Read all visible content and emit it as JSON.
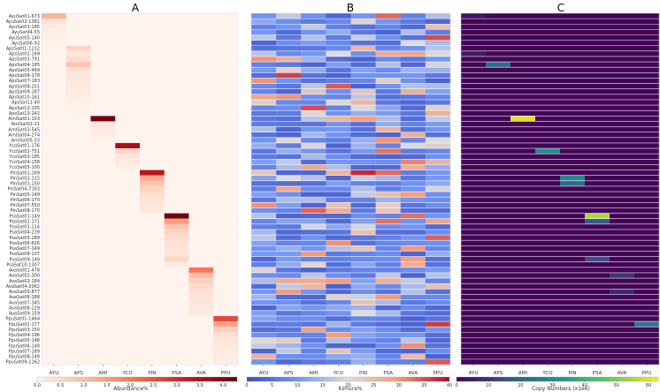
{
  "chart_data": [
    {
      "type": "heatmap",
      "panel": "A",
      "title": "A",
      "xlabel": "",
      "ylabel": "",
      "columns": [
        "AYU",
        "APS",
        "AMI",
        "YCO",
        "PIN",
        "PSA",
        "AVA",
        "PPU"
      ],
      "rows": [
        "AyuSat01-673",
        "AyuSat02-1381",
        "AyuSat03-185",
        "AyuSat04-55",
        "AyuSat05-140",
        "AyuSat06-92",
        "ApsSat01-1212",
        "ApsSat02-169",
        "ApsSat03-791",
        "ApsSat04-185",
        "ApsSat05-469",
        "ApsSat06-178",
        "ApsSat07-183",
        "ApsSat08-201",
        "ApsSat09-187",
        "ApsSat10-161",
        "ApsSat11-40",
        "ApsSat12-105",
        "ApsSat13-242",
        "AmiSat01-103",
        "AmiSat02-21",
        "AmiSat03-545",
        "AmiSat04-274",
        "AmiSat05-53",
        "YcoSat01-176",
        "YcoSat02-751",
        "YcoSat03-185",
        "YcoSat04-158",
        "YcoSat05-100",
        "PinSat01-169",
        "PinSat02-115",
        "PinSat03-150",
        "PinSat04-7163",
        "PinSat05-149",
        "PinSat06-170",
        "PinSat07-550",
        "PinSat08-170",
        "PsaSat01-149",
        "PsaSat02-171",
        "PsaSat03-114",
        "PsaSat04-239",
        "PsaSat05-289",
        "PsaSat06-626",
        "PsaSat07-149",
        "PsaSat08-107",
        "PsaSat09-149",
        "PsaSat10-1307",
        "AvaSat01-478",
        "AvaSat02-300",
        "AvaSat03-184",
        "AvaSat04-2062",
        "AvaSat05-877",
        "AvaSat06-188",
        "AvaSat07-345",
        "AvaSat08-129",
        "AvaSat09-159",
        "PpuSat01-1464",
        "PpuSat02-177",
        "PpuSat03-150",
        "PpuSat04-196",
        "PpuSat05-148",
        "PpuSat06-149",
        "PpuSat07-189",
        "PpuSat08-149",
        "PpuSat09-1162"
      ],
      "row_groups": [
        {
          "species_col": 0,
          "start": 0,
          "count": 6
        },
        {
          "species_col": 1,
          "start": 6,
          "count": 13
        },
        {
          "species_col": 2,
          "start": 19,
          "count": 5
        },
        {
          "species_col": 3,
          "start": 24,
          "count": 5
        },
        {
          "species_col": 4,
          "start": 29,
          "count": 8
        },
        {
          "species_col": 5,
          "start": 37,
          "count": 10
        },
        {
          "species_col": 6,
          "start": 47,
          "count": 9
        },
        {
          "species_col": 7,
          "start": 56,
          "count": 9
        }
      ],
      "group_values": [
        [
          1.2,
          0.35,
          0.2,
          0.15,
          0.1,
          0.1
        ],
        [
          0.6,
          0.3,
          0.5,
          0.9,
          0.35,
          0.3,
          0.25,
          0.2,
          0.2,
          0.15,
          0.12,
          0.1,
          0.1
        ],
        [
          4.2,
          0.3,
          0.2,
          0.15,
          0.1
        ],
        [
          3.6,
          0.5,
          0.3,
          0.2,
          0.15
        ],
        [
          3.4,
          1.3,
          0.9,
          0.6,
          0.45,
          0.35,
          0.3,
          0.25
        ],
        [
          4.2,
          1.5,
          0.9,
          0.6,
          0.5,
          0.4,
          0.35,
          0.3,
          0.6,
          0.2
        ],
        [
          2.0,
          1.0,
          0.7,
          0.5,
          0.4,
          0.35,
          0.3,
          0.25,
          0.2
        ],
        [
          2.6,
          1.4,
          0.7,
          0.4,
          0.3,
          0.25,
          0.2,
          0.2,
          0.15
        ]
      ],
      "background_value": 0.03,
      "colorbar": {
        "label": "Abundance%",
        "range": [
          0,
          4.3
        ],
        "ticks": [
          "0.0",
          "0.5",
          "1.0",
          "1.5",
          "2.0",
          "2.5",
          "3.0",
          "3.5",
          "4.0"
        ],
        "colors": [
          "#fff5f0",
          "#fcbba1",
          "#fb6a4a",
          "#cb181d",
          "#67000d"
        ]
      }
    },
    {
      "type": "heatmap",
      "panel": "B",
      "title": "B",
      "columns": [
        "AYU",
        "APS",
        "AMI",
        "YCO",
        "PIN",
        "PSA",
        "AVA",
        "PPU"
      ],
      "rows_ref": "same as panel A",
      "seed": 7,
      "typical_value_range": [
        2,
        38
      ],
      "colorbar": {
        "label": "Kimura%",
        "range": [
          0,
          40
        ],
        "ticks": [
          "0",
          "5",
          "10",
          "15",
          "20",
          "25",
          "30",
          "35",
          "40"
        ],
        "colors": [
          "#3b4cc0",
          "#7396f5",
          "#dddcdc",
          "#f49a7b",
          "#b40426"
        ]
      }
    },
    {
      "type": "heatmap",
      "panel": "C",
      "title": "C",
      "columns": [
        "AYU",
        "APS",
        "AMI",
        "YCO",
        "PIN",
        "PSA",
        "AVA",
        "PPU"
      ],
      "rows_ref": "same as panel A",
      "background_value": 1,
      "highlights": [
        {
          "row": 0,
          "col": 0,
          "value": 4
        },
        {
          "row": 7,
          "col": 0,
          "value": 5
        },
        {
          "row": 9,
          "col": 1,
          "value": 22
        },
        {
          "row": 19,
          "col": 2,
          "value": 60
        },
        {
          "row": 25,
          "col": 3,
          "value": 30
        },
        {
          "row": 30,
          "col": 4,
          "value": 30
        },
        {
          "row": 31,
          "col": 4,
          "value": 22
        },
        {
          "row": 37,
          "col": 5,
          "value": 55
        },
        {
          "row": 38,
          "col": 5,
          "value": 18
        },
        {
          "row": 45,
          "col": 5,
          "value": 15
        },
        {
          "row": 48,
          "col": 6,
          "value": 10
        },
        {
          "row": 51,
          "col": 6,
          "value": 8
        },
        {
          "row": 57,
          "col": 7,
          "value": 25
        }
      ],
      "colorbar": {
        "label": "Copy Numbers (x1e6)",
        "range": [
          0,
          63
        ],
        "ticks": [
          "0",
          "10",
          "20",
          "30",
          "40",
          "50",
          "60"
        ],
        "colors": [
          "#440154",
          "#3b528b",
          "#21918c",
          "#5ec962",
          "#fde725"
        ]
      }
    }
  ]
}
